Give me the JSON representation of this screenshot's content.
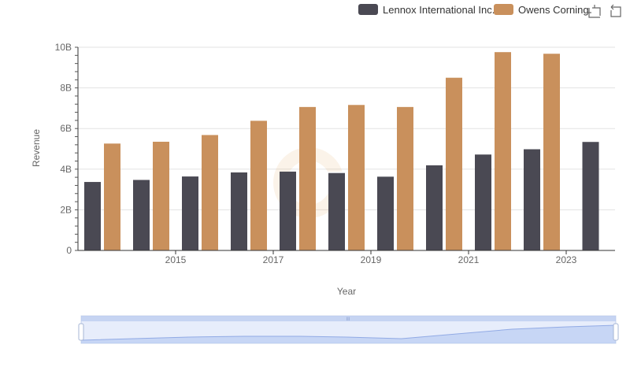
{
  "chart_data": {
    "type": "bar",
    "x": [
      2014,
      2015,
      2016,
      2017,
      2018,
      2019,
      2020,
      2021,
      2022,
      2023,
      2024
    ],
    "x_tick_labels": [
      "2015",
      "2017",
      "2019",
      "2021",
      "2023"
    ],
    "xlabel": "Year",
    "ylabel": "Revenue",
    "ylim": [
      0,
      10000000000
    ],
    "y_tick_labels": [
      "0",
      "2B",
      "4B",
      "6B",
      "8B",
      "10B"
    ],
    "grid": "horizontal",
    "legend_position": "top-right",
    "series": [
      {
        "name": "Lennox International Inc.",
        "color": "#4a4953",
        "values": [
          3370000000,
          3470000000,
          3640000000,
          3840000000,
          3880000000,
          3810000000,
          3630000000,
          4190000000,
          4720000000,
          4980000000,
          5340000000
        ]
      },
      {
        "name": "Owens Corning",
        "color": "#c9905c",
        "values": [
          5260000000,
          5350000000,
          5680000000,
          6380000000,
          7060000000,
          7160000000,
          7060000000,
          8500000000,
          9760000000,
          9680000000,
          null
        ]
      }
    ]
  },
  "toolbar": {
    "zoom_icon": "data-zoom-icon",
    "restore_icon": "restore-icon"
  },
  "data_zoom": {
    "handle_label": "III",
    "start_percent": 0,
    "end_percent": 100
  }
}
